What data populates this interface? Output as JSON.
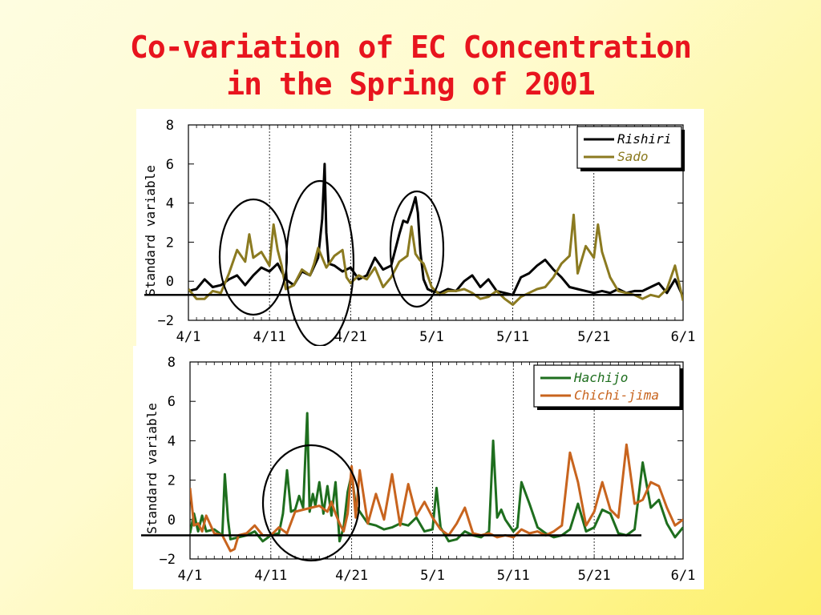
{
  "title": {
    "line1": "Co-variation of EC Concentration",
    "line2": "in the Spring of 2001"
  },
  "chart_data": [
    {
      "type": "line",
      "ylabel": "Standard variable",
      "ylim": [
        -2,
        8
      ],
      "yticks": [
        "-2",
        "0",
        "2",
        "4",
        "6",
        "8"
      ],
      "xlim": [
        0,
        61
      ],
      "xticks": [
        {
          "label": "4/1",
          "day": 0
        },
        {
          "label": "4/11",
          "day": 10
        },
        {
          "label": "4/21",
          "day": 20
        },
        {
          "label": "5/1",
          "day": 30
        },
        {
          "label": "5/11",
          "day": 40
        },
        {
          "label": "5/21",
          "day": 50
        },
        {
          "label": "6/1",
          "day": 61
        }
      ],
      "baseline": -0.7,
      "legend": "top-right",
      "series": [
        {
          "name": "Rishiri",
          "color": "#000000",
          "x": [
            0,
            1,
            2,
            3,
            4,
            5,
            6,
            7,
            8,
            9,
            10,
            11,
            12,
            13,
            14,
            15,
            16,
            16.5,
            16.8,
            17,
            17.3,
            18,
            19,
            20,
            21,
            22,
            23,
            24,
            25,
            26,
            26.5,
            27,
            27.5,
            28,
            28.3,
            28.6,
            29,
            29.5,
            30,
            31,
            32,
            33,
            34,
            35,
            36,
            37,
            38,
            39,
            40,
            41,
            42,
            43,
            44,
            45,
            46,
            47,
            48,
            49,
            50,
            51,
            52,
            53,
            54,
            55,
            56,
            57,
            58,
            59,
            60,
            61
          ],
          "y": [
            -0.5,
            -0.4,
            0.1,
            -0.3,
            -0.2,
            0.1,
            0.3,
            -0.2,
            0.3,
            0.7,
            0.5,
            0.9,
            0.1,
            -0.2,
            0.5,
            0.3,
            1.2,
            3.2,
            6.0,
            2.5,
            0.9,
            0.8,
            0.5,
            0.7,
            0.1,
            0.3,
            1.2,
            0.6,
            0.8,
            2.4,
            3.1,
            3.0,
            3.6,
            4.3,
            3.5,
            1.5,
            0.1,
            -0.4,
            -0.5,
            -0.6,
            -0.4,
            -0.5,
            0.0,
            0.3,
            -0.3,
            0.1,
            -0.5,
            -0.6,
            -0.7,
            0.2,
            0.4,
            0.8,
            1.1,
            0.6,
            0.2,
            -0.3,
            -0.4,
            -0.5,
            -0.6,
            -0.5,
            -0.6,
            -0.4,
            -0.6,
            -0.5,
            -0.5,
            -0.3,
            -0.1,
            -0.6,
            0.1,
            -0.8
          ]
        },
        {
          "name": "Sado",
          "color": "#8b7a20",
          "x": [
            0,
            1,
            2,
            3,
            4,
            5,
            6,
            7,
            7.5,
            8,
            9,
            10,
            10.5,
            11,
            11.5,
            12,
            13,
            14,
            15,
            15.5,
            16,
            17,
            18,
            19,
            19.5,
            20,
            21,
            22,
            23,
            24,
            25,
            26,
            27,
            27.5,
            28,
            28.5,
            29,
            30,
            31,
            32,
            33,
            34,
            35,
            36,
            37,
            38,
            39,
            40,
            41,
            42,
            43,
            44,
            45,
            46,
            47,
            47.5,
            48,
            49,
            50,
            50.5,
            51,
            52,
            53,
            54,
            55,
            56,
            57,
            58,
            59,
            60,
            61
          ],
          "y": [
            -0.4,
            -0.9,
            -0.9,
            -0.5,
            -0.6,
            0.4,
            1.6,
            1.0,
            2.4,
            1.2,
            1.5,
            0.8,
            2.9,
            1.6,
            0.8,
            -0.4,
            -0.2,
            0.6,
            0.3,
            0.9,
            1.7,
            0.7,
            1.3,
            1.6,
            0.2,
            -0.1,
            0.3,
            0.1,
            0.7,
            -0.3,
            0.2,
            1.0,
            1.3,
            2.8,
            1.4,
            1.1,
            0.9,
            -0.3,
            -0.7,
            -0.5,
            -0.5,
            -0.4,
            -0.6,
            -0.9,
            -0.8,
            -0.5,
            -0.9,
            -1.2,
            -0.8,
            -0.6,
            -0.4,
            -0.3,
            0.2,
            0.9,
            1.3,
            3.4,
            0.4,
            1.8,
            1.2,
            2.9,
            1.5,
            0.2,
            -0.5,
            -0.6,
            -0.7,
            -0.9,
            -0.7,
            -0.8,
            -0.4,
            0.8,
            -1.0
          ]
        }
      ]
    },
    {
      "type": "line",
      "ylabel": "Standard variable",
      "ylim": [
        -2,
        8
      ],
      "yticks": [
        "-2",
        "0",
        "2",
        "4",
        "6",
        "8"
      ],
      "xlim": [
        0,
        61
      ],
      "xticks": [
        {
          "label": "4/1",
          "day": 0
        },
        {
          "label": "4/11",
          "day": 10
        },
        {
          "label": "4/21",
          "day": 20
        },
        {
          "label": "5/1",
          "day": 30
        },
        {
          "label": "5/11",
          "day": 40
        },
        {
          "label": "5/21",
          "day": 50
        },
        {
          "label": "6/1",
          "day": 61
        }
      ],
      "baseline": -0.8,
      "legend": "top-right",
      "series": [
        {
          "name": "Hachijo",
          "color": "#1e6e1e",
          "x": [
            0,
            0.5,
            1,
            1.5,
            2,
            3,
            4,
            4.3,
            4.7,
            5,
            6,
            7,
            8,
            9,
            10,
            11,
            11.5,
            12,
            12.5,
            13,
            13.5,
            14,
            14.5,
            14.8,
            15.2,
            15.5,
            16,
            16.5,
            17,
            17.5,
            18,
            18.5,
            19,
            19.5,
            20,
            20.5,
            21,
            22,
            23,
            24,
            25,
            26,
            27,
            28,
            29,
            30,
            30.5,
            31,
            32,
            33,
            34,
            35,
            36,
            37,
            37.5,
            38,
            38.5,
            39,
            40,
            40.5,
            41,
            42,
            43,
            44,
            45,
            46,
            47,
            48,
            49,
            50,
            51,
            52,
            53,
            54,
            55,
            56,
            57,
            58,
            59,
            60,
            61
          ],
          "y": [
            -0.7,
            0.3,
            -0.6,
            0.2,
            -0.6,
            -0.5,
            -0.8,
            2.3,
            0.0,
            -1.0,
            -0.9,
            -0.8,
            -0.6,
            -1.1,
            -0.8,
            -0.7,
            0.3,
            2.5,
            0.4,
            0.5,
            1.2,
            0.6,
            5.4,
            0.4,
            1.3,
            0.7,
            1.9,
            0.3,
            1.7,
            0.2,
            1.9,
            -1.1,
            -0.4,
            1.4,
            2.3,
            0.7,
            0.4,
            -0.2,
            -0.3,
            -0.5,
            -0.4,
            -0.2,
            -0.3,
            0.1,
            -0.6,
            -0.5,
            1.6,
            -0.4,
            -1.1,
            -1.0,
            -0.6,
            -0.8,
            -0.9,
            -0.6,
            4.0,
            0.1,
            0.5,
            0.0,
            -0.6,
            -0.4,
            1.9,
            0.8,
            -0.4,
            -0.7,
            -0.9,
            -0.8,
            -0.5,
            0.8,
            -0.6,
            -0.4,
            0.5,
            0.3,
            -0.7,
            -0.8,
            -0.5,
            2.9,
            0.6,
            1.0,
            -0.2,
            -0.9,
            -0.4
          ]
        },
        {
          "name": "Chichi-jima",
          "color": "#c8641e",
          "x": [
            0,
            0.5,
            1,
            1.5,
            2,
            3,
            4,
            5,
            5.5,
            6,
            7,
            8,
            9,
            10,
            11,
            12,
            13,
            14,
            15,
            16,
            17,
            17.5,
            18,
            18.5,
            19,
            19.5,
            20,
            20.5,
            21,
            22,
            23,
            24,
            25,
            26,
            27,
            28,
            29,
            30,
            31,
            32,
            33,
            34,
            35,
            36,
            37,
            38,
            39,
            40,
            41,
            42,
            43,
            44,
            45,
            46,
            47,
            48,
            49,
            50,
            51,
            52,
            53,
            54,
            55,
            56,
            57,
            58,
            59,
            60,
            61
          ],
          "y": [
            1.6,
            -0.3,
            -0.2,
            -0.6,
            0.2,
            -0.7,
            -0.8,
            -1.6,
            -1.5,
            -0.8,
            -0.7,
            -0.3,
            -0.8,
            -0.8,
            -0.4,
            -0.7,
            0.4,
            0.5,
            0.6,
            0.7,
            0.4,
            0.9,
            0.3,
            -0.2,
            -0.6,
            0.3,
            2.7,
            0.1,
            2.5,
            -0.2,
            1.3,
            0.0,
            2.3,
            -0.3,
            1.8,
            0.2,
            0.9,
            0.1,
            -0.5,
            -0.8,
            -0.2,
            0.6,
            -0.7,
            -0.8,
            -0.7,
            -0.9,
            -0.8,
            -0.9,
            -0.5,
            -0.7,
            -0.6,
            -0.8,
            -0.6,
            -0.3,
            3.4,
            1.9,
            -0.3,
            0.4,
            1.9,
            0.5,
            0.1,
            3.8,
            0.8,
            1.0,
            1.9,
            1.7,
            0.6,
            -0.3,
            0.0
          ]
        }
      ]
    }
  ],
  "highlight_circles_note": ""
}
